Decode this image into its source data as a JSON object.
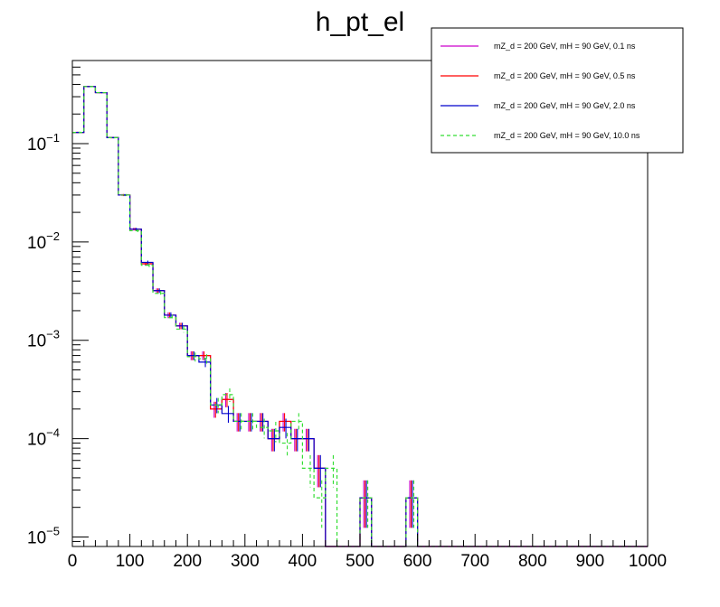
{
  "chart_data": {
    "type": "line",
    "style": "step-histogram",
    "title": "h_pt_el",
    "xlabel": "",
    "ylabel": "",
    "xlim": [
      0,
      1000
    ],
    "ylim": [
      8e-06,
      0.7
    ],
    "yscale": "log",
    "bin_width": 20,
    "legend_position": "top-right",
    "x_tick_labels": [
      {
        "value": 0,
        "label": "0"
      },
      {
        "value": 100,
        "label": "100"
      },
      {
        "value": 200,
        "label": "200"
      },
      {
        "value": 300,
        "label": "300"
      },
      {
        "value": 400,
        "label": "400"
      },
      {
        "value": 500,
        "label": "500"
      },
      {
        "value": 600,
        "label": "600"
      },
      {
        "value": 700,
        "label": "700"
      },
      {
        "value": 800,
        "label": "800"
      },
      {
        "value": 900,
        "label": "900"
      },
      {
        "value": 1000,
        "label": "1000"
      }
    ],
    "y_tick_labels": [
      {
        "value": 0.1,
        "base": "10",
        "exp": "−1"
      },
      {
        "value": 0.01,
        "base": "10",
        "exp": "−2"
      },
      {
        "value": 0.001,
        "base": "10",
        "exp": "−3"
      },
      {
        "value": 0.0001,
        "base": "10",
        "exp": "−4"
      },
      {
        "value": 1e-05,
        "base": "10",
        "exp": "−5"
      }
    ],
    "series": [
      {
        "name": "mZ_d = 200 GeV, mH = 90 GeV, 0.1 ns",
        "color": "#cc00cc",
        "dash": "solid",
        "values": [
          0.13,
          0.38,
          0.33,
          0.115,
          0.03,
          0.0135,
          0.006,
          0.0032,
          0.0018,
          0.0014,
          0.0007,
          0.0007,
          0.0002,
          0.00025,
          0.00015,
          0.00015,
          0.00015,
          0.0001,
          0.00015,
          0.0001,
          0.0001,
          5e-05,
          0,
          0,
          0,
          2.5e-05,
          0,
          0,
          0,
          2.5e-05,
          0,
          0,
          0,
          0,
          0,
          0,
          0,
          0,
          0,
          0,
          0,
          0,
          0,
          0,
          0,
          0,
          0,
          0,
          0,
          0
        ]
      },
      {
        "name": "mZ_d = 200 GeV, mH = 90 GeV, 0.5 ns",
        "color": "#ff0000",
        "dash": "solid",
        "values": [
          0.13,
          0.38,
          0.33,
          0.115,
          0.03,
          0.0135,
          0.006,
          0.0032,
          0.0018,
          0.0014,
          0.0007,
          0.0007,
          0.0002,
          0.00025,
          0.00015,
          0.00015,
          0.00015,
          0.0001,
          0.00015,
          0.0001,
          0.0001,
          5e-05,
          0,
          0,
          0,
          2.5e-05,
          0,
          0,
          0,
          2.5e-05,
          0,
          0,
          0,
          0,
          0,
          0,
          0,
          0,
          0,
          0,
          0,
          0,
          0,
          0,
          0,
          0,
          0,
          0,
          0,
          0
        ]
      },
      {
        "name": "mZ_d = 200 GeV, mH = 90 GeV, 2.0 ns",
        "color": "#0000cc",
        "dash": "solid",
        "values": [
          0.13,
          0.38,
          0.33,
          0.115,
          0.03,
          0.0135,
          0.0062,
          0.0032,
          0.0018,
          0.0014,
          0.0007,
          0.0006,
          0.00022,
          0.00018,
          0.00015,
          0.00015,
          0.00015,
          0.0001,
          0.00013,
          0.0001,
          0.0001,
          5e-05,
          0,
          0,
          0,
          2.5e-05,
          0,
          0,
          0,
          2.5e-05,
          0,
          0,
          0,
          0,
          0,
          0,
          0,
          0,
          0,
          0,
          0,
          0,
          0,
          0,
          0,
          0,
          0,
          0,
          0,
          0
        ]
      },
      {
        "name": "mZ_d = 200 GeV, mH = 90 GeV, 10.0 ns",
        "color": "#33dd33",
        "dash": "dashed",
        "values": [
          0.13,
          0.38,
          0.33,
          0.115,
          0.03,
          0.013,
          0.0058,
          0.003,
          0.0017,
          0.0013,
          0.00068,
          0.00065,
          0.00022,
          0.00028,
          0.00015,
          0.00015,
          0.00013,
          0.00012,
          9e-05,
          0.00015,
          5e-05,
          2.5e-05,
          5e-05,
          0,
          0,
          2.5e-05,
          0,
          0,
          0,
          2.5e-05,
          0,
          0,
          0,
          0,
          0,
          0,
          0,
          0,
          0,
          0,
          0,
          0,
          0,
          0,
          0,
          0,
          0,
          0,
          0,
          0
        ]
      }
    ]
  }
}
